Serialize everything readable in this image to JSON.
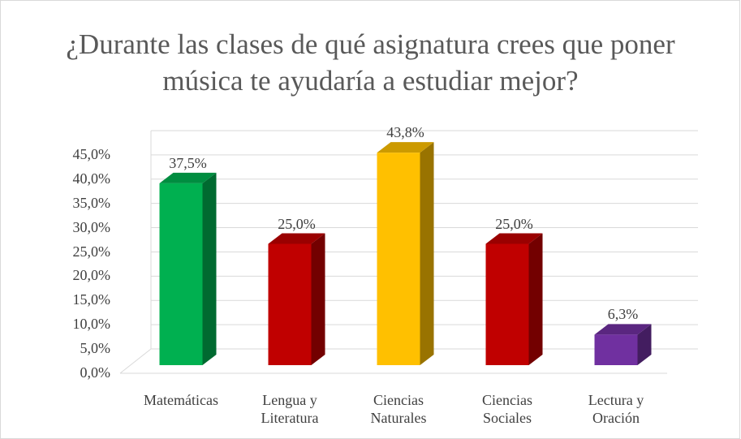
{
  "chart_data": {
    "type": "bar",
    "title": "¿Durante las clases de qué asignatura crees que poner música te ayudaría a estudiar mejor?",
    "categories": [
      "Matemáticas",
      "Lengua y Literatura",
      "Ciencias Naturales",
      "Ciencias Sociales",
      "Lectura y Oración"
    ],
    "values": [
      37.5,
      25.0,
      43.8,
      25.0,
      6.3
    ],
    "value_labels": [
      "37,5%",
      "25,0%",
      "43,8%",
      "25,0%",
      "6,3%"
    ],
    "colors": [
      "#00b050",
      "#c00000",
      "#ffc000",
      "#c00000",
      "#7030a0"
    ],
    "ylim": [
      0,
      45
    ],
    "yticks": [
      {
        "value": 0,
        "label": "0,0%"
      },
      {
        "value": 5,
        "label": "5,0%"
      },
      {
        "value": 10,
        "label": "10,0%"
      },
      {
        "value": 15,
        "label": "15,0%"
      },
      {
        "value": 20,
        "label": "20,0%"
      },
      {
        "value": 25,
        "label": "25,0%"
      },
      {
        "value": 30,
        "label": "30,0%"
      },
      {
        "value": 35,
        "label": "35,0%"
      },
      {
        "value": 40,
        "label": "40,0%"
      },
      {
        "value": 45,
        "label": "45,0%"
      }
    ],
    "grid": true
  }
}
